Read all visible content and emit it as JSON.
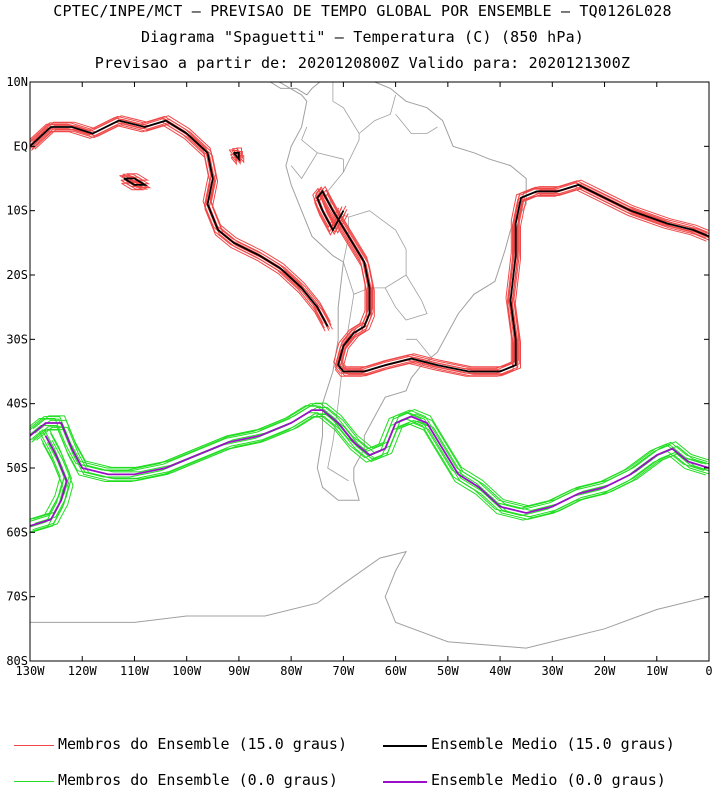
{
  "titles": {
    "line1": "CPTEC/INPE/MCT – PREVISAO DE TEMPO GLOBAL POR ENSEMBLE – TQ0126L028",
    "line2": "Diagrama \"Spaguetti\" – Temperatura (C) (850 hPa)",
    "line3": "Previsao a partir de: 2020120800Z  Valido para: 2020121300Z"
  },
  "colors": {
    "member15": "#f04848",
    "mean15": "#000000",
    "member0": "#22dd22",
    "mean0": "#9a10c8",
    "coast": "#a0a0a0",
    "border": "#a0a0a0"
  },
  "legend": [
    {
      "label": "Membros do Ensemble (15.0 graus)",
      "color": "#f04848"
    },
    {
      "label": "Ensemble Medio (15.0 graus)",
      "color": "#000000"
    },
    {
      "label": "Membros do Ensemble (0.0 graus)",
      "color": "#22dd22"
    },
    {
      "label": "Ensemble Medio (0.0 graus)",
      "color": "#9a10c8"
    }
  ],
  "chart_data": {
    "type": "line",
    "title": "Diagrama \"Spaguetti\" – Temperatura (C) (850 hPa)",
    "xlim": [
      -130,
      0
    ],
    "ylim": [
      -80,
      10
    ],
    "x_ticks": [
      "130W",
      "120W",
      "110W",
      "100W",
      "90W",
      "80W",
      "70W",
      "60W",
      "50W",
      "40W",
      "30W",
      "20W",
      "10W",
      "0"
    ],
    "y_ticks": [
      "10N",
      "EQ",
      "10S",
      "20S",
      "30S",
      "40S",
      "50S",
      "60S",
      "70S",
      "80S"
    ],
    "series": [
      {
        "name": "Ensemble Medio (15.0 graus)",
        "segments": [
          [
            [
              -130,
              0
            ],
            [
              -126,
              3
            ],
            [
              -122,
              3
            ],
            [
              -118,
              2
            ],
            [
              -113,
              4
            ],
            [
              -108,
              3
            ],
            [
              -104,
              4
            ],
            [
              -100,
              2
            ],
            [
              -96,
              -1
            ],
            [
              -95,
              -5
            ],
            [
              -96,
              -9
            ],
            [
              -94,
              -13
            ],
            [
              -91,
              -15
            ],
            [
              -86,
              -17
            ],
            [
              -82,
              -19
            ],
            [
              -78,
              -22
            ],
            [
              -75,
              -25
            ],
            [
              -73,
              -28
            ]
          ],
          [
            [
              -70,
              -10
            ],
            [
              -72,
              -13
            ],
            [
              -74,
              -10
            ],
            [
              -75,
              -8
            ],
            [
              -74,
              -7
            ],
            [
              -72,
              -10
            ],
            [
              -69,
              -14
            ],
            [
              -66,
              -18
            ],
            [
              -65,
              -22
            ],
            [
              -65,
              -26
            ],
            [
              -66,
              -28
            ],
            [
              -68,
              -29
            ],
            [
              -70,
              -31
            ],
            [
              -71,
              -34
            ],
            [
              -70,
              -35
            ],
            [
              -66,
              -35
            ],
            [
              -62,
              -34
            ],
            [
              -57,
              -33
            ],
            [
              -52,
              -34
            ],
            [
              -46,
              -35
            ],
            [
              -40,
              -35
            ],
            [
              -37,
              -34
            ],
            [
              -37,
              -30
            ],
            [
              -38,
              -24
            ],
            [
              -37,
              -17
            ],
            [
              -37,
              -12
            ],
            [
              -36,
              -8
            ],
            [
              -33,
              -7
            ],
            [
              -29,
              -7
            ],
            [
              -25,
              -6
            ],
            [
              -20,
              -8
            ],
            [
              -15,
              -10
            ],
            [
              -8,
              -12
            ],
            [
              -3,
              -13
            ],
            [
              0,
              -14
            ]
          ],
          [
            [
              -112,
              -5
            ],
            [
              -110,
              -5
            ],
            [
              -108,
              -6
            ],
            [
              -110,
              -6
            ],
            [
              -112,
              -5
            ]
          ],
          [
            [
              -91,
              -1
            ],
            [
              -90,
              -1
            ],
            [
              -90,
              -2
            ],
            [
              -91,
              -1
            ]
          ]
        ]
      },
      {
        "name": "Ensemble Medio (0.0 graus)",
        "segments": [
          [
            [
              -130,
              -45
            ],
            [
              -127,
              -43
            ],
            [
              -124,
              -43
            ],
            [
              -122,
              -47
            ],
            [
              -120,
              -50
            ],
            [
              -115,
              -51
            ],
            [
              -110,
              -51
            ],
            [
              -104,
              -50
            ],
            [
              -98,
              -48
            ],
            [
              -92,
              -46
            ],
            [
              -86,
              -45
            ],
            [
              -80,
              -43
            ],
            [
              -76,
              -41
            ],
            [
              -74,
              -41
            ],
            [
              -71,
              -43
            ],
            [
              -68,
              -46
            ],
            [
              -65,
              -48
            ],
            [
              -62,
              -47
            ],
            [
              -60,
              -43
            ],
            [
              -57,
              -42
            ],
            [
              -54,
              -43
            ],
            [
              -51,
              -47
            ],
            [
              -48,
              -51
            ],
            [
              -44,
              -53
            ],
            [
              -40,
              -56
            ],
            [
              -35,
              -57
            ],
            [
              -30,
              -56
            ],
            [
              -25,
              -54
            ],
            [
              -20,
              -53
            ],
            [
              -15,
              -51
            ],
            [
              -10,
              -48
            ],
            [
              -7,
              -47
            ],
            [
              -4,
              -49
            ],
            [
              0,
              -50
            ]
          ],
          [
            [
              -130,
              -59
            ],
            [
              -126,
              -58
            ],
            [
              -124,
              -55
            ],
            [
              -123,
              -52
            ],
            [
              -125,
              -48
            ],
            [
              -127,
              -45
            ]
          ]
        ]
      }
    ],
    "members_15": [
      {
        "offset": [
          0,
          0
        ]
      },
      {
        "offset": [
          0.6,
          0.7
        ]
      },
      {
        "offset": [
          -0.6,
          -0.7
        ]
      },
      {
        "offset": [
          1.1,
          -0.4
        ]
      },
      {
        "offset": [
          -1.0,
          0.5
        ]
      },
      {
        "offset": [
          0.4,
          1.3
        ]
      },
      {
        "offset": [
          -0.4,
          -1.3
        ]
      },
      {
        "offset": [
          1.5,
          0.9
        ]
      },
      {
        "offset": [
          -1.4,
          -0.9
        ]
      },
      {
        "offset": [
          0.8,
          -1.5
        ]
      },
      {
        "offset": [
          -0.8,
          1.5
        ]
      }
    ],
    "members_0": [
      {
        "offset": [
          0,
          0
        ]
      },
      {
        "offset": [
          0.8,
          1.2
        ]
      },
      {
        "offset": [
          -0.8,
          -1.2
        ]
      },
      {
        "offset": [
          1.5,
          -0.8
        ]
      },
      {
        "offset": [
          -1.5,
          0.8
        ]
      },
      {
        "offset": [
          0.5,
          2.0
        ]
      },
      {
        "offset": [
          -0.5,
          -2.0
        ]
      },
      {
        "offset": [
          2.0,
          1.4
        ]
      },
      {
        "offset": [
          -2.0,
          -1.4
        ]
      },
      {
        "offset": [
          1.0,
          -2.2
        ]
      },
      {
        "offset": [
          -1.0,
          2.2
        ]
      }
    ]
  }
}
